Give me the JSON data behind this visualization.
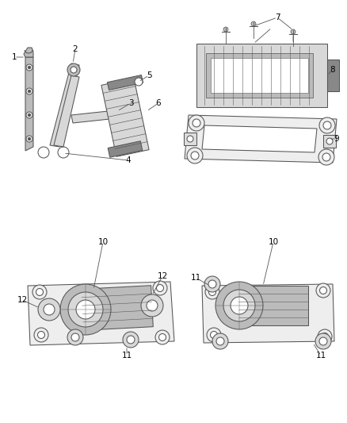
{
  "bg_color": "#ffffff",
  "line_color": "#555555",
  "label_color": "#000000",
  "figsize": [
    4.38,
    5.33
  ],
  "dpi": 100,
  "lw": 0.75,
  "gray_fill": "#d8d8d8",
  "dark_fill": "#888888",
  "mid_fill": "#bbbbbb"
}
